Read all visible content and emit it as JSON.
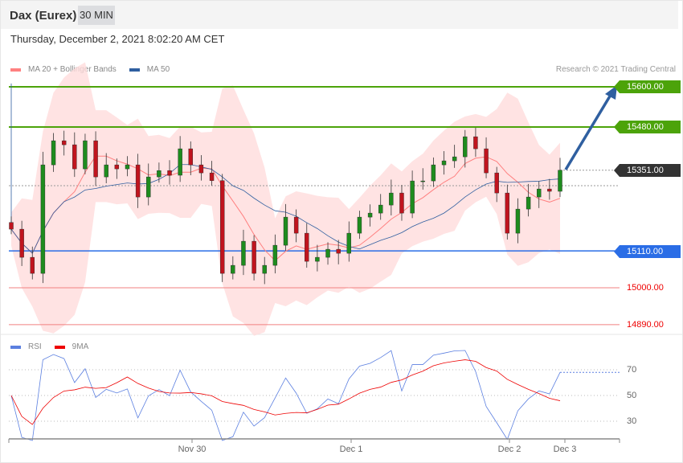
{
  "header": {
    "title": "Dax (Eurex)",
    "interval": "30 MIN"
  },
  "date": "Thursday, December 2, 2021 8:02:20 AM CET",
  "legend": {
    "ma20": "MA 20 + Bollinger Bands",
    "ma50": "MA 50",
    "rsi": "RSI",
    "ma9": "9MA"
  },
  "copyright": "Research © 2021 Trading Central",
  "levels": {
    "l1": "15600.00",
    "l2": "15480.00",
    "last": "15351.00",
    "l3": "15110.00",
    "l4": "15000.00",
    "l5": "14890.00"
  },
  "rsi_levels": {
    "r70": "70",
    "r50": "50",
    "r30": "30"
  },
  "xaxis": [
    "Nov 30",
    "Dec 1",
    "Dec 2",
    "Dec 3"
  ],
  "colors": {
    "green": "#4ca30a",
    "blue": "#2a6de6",
    "red": "#e00000",
    "ma50": "#2f5fa0",
    "boll": "#ffdcdc"
  },
  "chart_data": {
    "type": "candlestick",
    "ylim": [
      14850,
      15640
    ],
    "target": 15600,
    "closes": [
      15175,
      15091,
      15043,
      15367,
      15439,
      15427,
      15355,
      15439,
      15331,
      15367,
      15355,
      15367,
      15271,
      15331,
      15350,
      15336,
      15415,
      15367,
      15343,
      15320,
      15043,
      15067,
      15139,
      15043,
      15067,
      15127,
      15211,
      15163,
      15079,
      15091,
      15115,
      15103,
      15163,
      15211,
      15223,
      15247,
      15283,
      15223,
      15319,
      15319,
      15367,
      15379,
      15391,
      15451,
      15415,
      15343,
      15283,
      15163,
      15235,
      15271,
      15295,
      15288,
      15351
    ]
  }
}
